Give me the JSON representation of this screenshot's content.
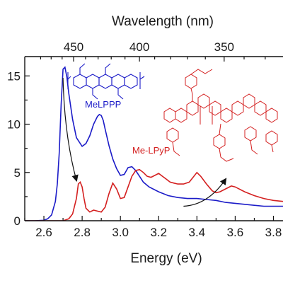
{
  "chart_data": {
    "type": "line",
    "xlabel_bottom": "Energy (eV)",
    "xlabel_top": "Wavelength (nm)",
    "ylabel": "",
    "xlim": [
      2.5,
      3.85
    ],
    "ylim": [
      0,
      17
    ],
    "x_ticks": [
      "2.6",
      "2.8",
      "3.0",
      "3.2",
      "3.4",
      "3.6",
      "3.8"
    ],
    "x_tick_values": [
      2.6,
      2.8,
      3.0,
      3.2,
      3.4,
      3.6,
      3.8
    ],
    "y_ticks": [
      "0",
      "5",
      "10",
      "15"
    ],
    "y_tick_values": [
      0,
      5,
      10,
      15
    ],
    "top_ticks": [
      "450",
      "400",
      "350"
    ],
    "top_tick_values_nm": [
      450,
      400,
      350
    ],
    "grid": false,
    "series": [
      {
        "name": "MeLPPP",
        "color": "#1c1cc8",
        "x": [
          2.5,
          2.55,
          2.6,
          2.62,
          2.64,
          2.66,
          2.67,
          2.68,
          2.69,
          2.7,
          2.71,
          2.72,
          2.73,
          2.75,
          2.77,
          2.8,
          2.82,
          2.84,
          2.86,
          2.88,
          2.89,
          2.9,
          2.91,
          2.92,
          2.94,
          2.96,
          2.98,
          3.0,
          3.02,
          3.04,
          3.06,
          3.08,
          3.1,
          3.12,
          3.15,
          3.2,
          3.25,
          3.3,
          3.35,
          3.4,
          3.45,
          3.5,
          3.55,
          3.6,
          3.65,
          3.7,
          3.75,
          3.8,
          3.85
        ],
        "values": [
          0.0,
          0.0,
          0.05,
          0.2,
          0.6,
          2.0,
          3.8,
          7.0,
          12.0,
          15.7,
          15.9,
          14.9,
          13.2,
          10.5,
          8.6,
          7.7,
          8.0,
          8.8,
          10.0,
          10.8,
          11.0,
          10.9,
          10.4,
          9.5,
          7.8,
          6.4,
          5.4,
          4.7,
          4.8,
          5.5,
          5.6,
          5.2,
          4.6,
          4.0,
          3.5,
          3.0,
          2.6,
          2.4,
          2.3,
          2.3,
          2.2,
          2.1,
          1.9,
          1.8,
          1.7,
          1.6,
          1.5,
          1.5,
          1.5
        ]
      },
      {
        "name": "Me-LPyP",
        "color": "#d42020",
        "x": [
          2.5,
          2.6,
          2.7,
          2.73,
          2.75,
          2.77,
          2.78,
          2.79,
          2.8,
          2.81,
          2.82,
          2.84,
          2.86,
          2.88,
          2.9,
          2.92,
          2.94,
          2.96,
          2.98,
          3.0,
          3.02,
          3.04,
          3.06,
          3.08,
          3.1,
          3.12,
          3.14,
          3.16,
          3.18,
          3.2,
          3.22,
          3.24,
          3.26,
          3.28,
          3.3,
          3.33,
          3.36,
          3.38,
          3.4,
          3.42,
          3.45,
          3.48,
          3.5,
          3.52,
          3.55,
          3.58,
          3.6,
          3.65,
          3.7,
          3.75,
          3.8,
          3.85
        ],
        "values": [
          0.0,
          0.0,
          0.0,
          0.2,
          0.7,
          2.3,
          3.8,
          4.0,
          3.5,
          2.3,
          1.3,
          0.9,
          1.1,
          1.0,
          0.9,
          1.4,
          2.8,
          3.9,
          3.3,
          2.3,
          2.4,
          3.5,
          4.6,
          5.2,
          5.3,
          5.0,
          4.6,
          4.5,
          4.7,
          4.9,
          4.6,
          4.3,
          4.0,
          3.9,
          3.8,
          3.8,
          4.0,
          4.5,
          5.0,
          4.6,
          3.8,
          3.1,
          2.9,
          3.0,
          3.3,
          3.6,
          3.5,
          3.0,
          2.6,
          2.3,
          2.1,
          2.0
        ]
      }
    ],
    "annotations": {
      "melppp_label": "MeLPPP",
      "melpyp_label": "Me-LPyP",
      "arrow_1": {
        "from": [
          2.7,
          14.8
        ],
        "to": [
          2.77,
          4.2
        ]
      },
      "arrow_2": {
        "from": [
          3.33,
          1.5
        ],
        "to": [
          3.55,
          4.3
        ]
      }
    }
  }
}
